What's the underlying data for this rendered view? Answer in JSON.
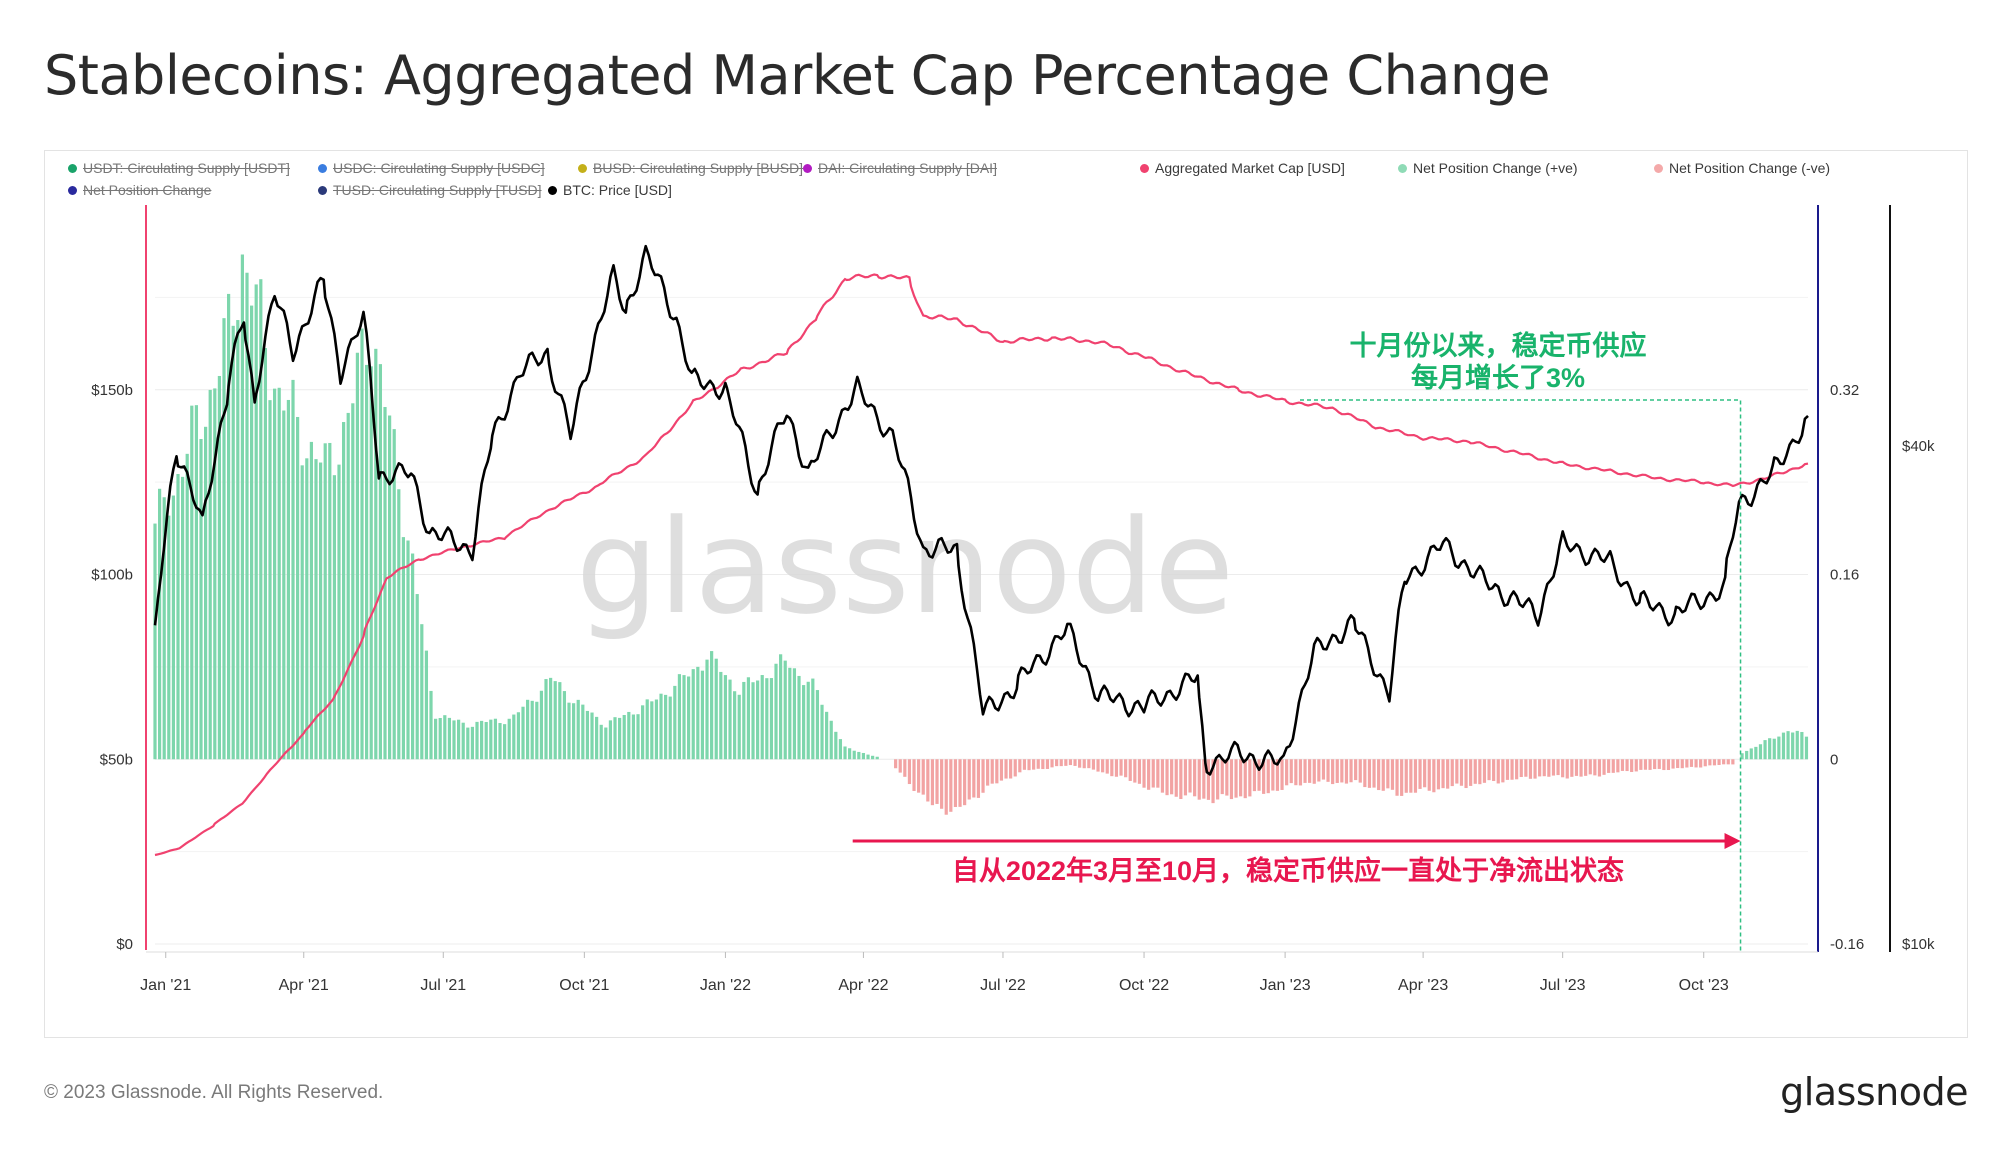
{
  "header": {
    "title": "Stablecoins: Aggregated Market Cap Percentage Change"
  },
  "footer": {
    "copyright": "© 2023 Glassnode. All Rights Reserved.",
    "brand": "glassnode"
  },
  "watermark": "glassnode",
  "colors": {
    "net_positive": "#7dd6ac",
    "net_negative": "#f2a3a3",
    "market_cap": "#f0426f",
    "btc_price": "#000000",
    "left_axis": "#f0426f",
    "right_axis": "#1a1a8c",
    "annotation_green": "#19b36b",
    "annotation_red": "#e8174f"
  },
  "legend": [
    {
      "label": "USDT: Circulating Supply [USDT]",
      "color": "#1aa36a",
      "active": false
    },
    {
      "label": "USDC: Circulating Supply [USDC]",
      "color": "#3a7de0",
      "active": false
    },
    {
      "label": "BUSD: Circulating Supply [BUSD]",
      "color": "#c4b01a",
      "active": false
    },
    {
      "label": "DAI: Circulating Supply [DAI]",
      "color": "#b21cc2",
      "active": false
    },
    {
      "label": "Aggregated Market Cap [USD]",
      "color": "#f0426f",
      "active": true
    },
    {
      "label": "Net Position Change (+ve)",
      "color": "#8fdbb6",
      "active": true
    },
    {
      "label": "Net Position Change (-ve)",
      "color": "#f4a9a9",
      "active": true
    },
    {
      "label": "Net Position Change",
      "color": "#2a2a9e",
      "active": false
    },
    {
      "label": "TUSD: Circulating Supply [TUSD]",
      "color": "#2b3a7a",
      "active": false
    },
    {
      "label": "BTC: Price [USD]",
      "color": "#000000",
      "active": true
    }
  ],
  "annotations": {
    "green_line1": "十月份以来，稳定币供应",
    "green_line2": "每月增长了3%",
    "red_text": "自从2022年3月至10月，稳定币供应一直处于净流出状态"
  },
  "chart_data": {
    "type": "line",
    "title": "Stablecoins: Aggregated Market Cap Percentage Change",
    "x_ticks": [
      "Jan '21",
      "Apr '21",
      "Jul '21",
      "Oct '21",
      "Jan '22",
      "Apr '22",
      "Jul '22",
      "Oct '22",
      "Jan '23",
      "Apr '23",
      "Jul '23",
      "Oct '23"
    ],
    "x_tick_dates": [
      "2021-01-01",
      "2021-04-01",
      "2021-07-01",
      "2021-10-01",
      "2022-01-01",
      "2022-04-01",
      "2022-07-01",
      "2022-10-01",
      "2023-01-01",
      "2023-04-01",
      "2023-07-01",
      "2023-10-01"
    ],
    "x_range": [
      "2020-12-25",
      "2023-12-08"
    ],
    "left_axis": {
      "ticks": [
        "$0",
        "$50b",
        "$100b",
        "$150b"
      ],
      "values": [
        0,
        50,
        100,
        150
      ],
      "range": [
        0,
        200
      ],
      "unit": "billion USD"
    },
    "right_axis": {
      "ticks": [
        "-0.16",
        "0",
        "0.16",
        "0.32"
      ],
      "values": [
        -0.16,
        0,
        0.16,
        0.32
      ],
      "range": [
        -0.16,
        0.48
      ]
    },
    "far_right_axis": {
      "ticks": [
        "$10k",
        "$40k"
      ],
      "values": [
        10000,
        40000
      ],
      "scale": "log"
    },
    "grid": true,
    "legend_position": "top",
    "series": [
      {
        "name": "Aggregated Market Cap [USD]",
        "axis": "left",
        "points": [
          [
            "2020-12-25",
            24
          ],
          [
            "2021-01-10",
            26
          ],
          [
            "2021-02-01",
            32
          ],
          [
            "2021-02-20",
            38
          ],
          [
            "2021-03-10",
            47
          ],
          [
            "2021-04-01",
            57
          ],
          [
            "2021-04-20",
            66
          ],
          [
            "2021-05-10",
            83
          ],
          [
            "2021-05-25",
            99
          ],
          [
            "2021-06-15",
            104
          ],
          [
            "2021-07-10",
            107
          ],
          [
            "2021-08-10",
            110
          ],
          [
            "2021-09-10",
            118
          ],
          [
            "2021-10-10",
            124
          ],
          [
            "2021-11-10",
            132
          ],
          [
            "2021-12-10",
            146
          ],
          [
            "2022-01-10",
            155
          ],
          [
            "2022-02-10",
            160
          ],
          [
            "2022-03-01",
            169
          ],
          [
            "2022-03-20",
            180
          ],
          [
            "2022-04-10",
            181
          ],
          [
            "2022-05-01",
            180
          ],
          [
            "2022-05-10",
            170
          ],
          [
            "2022-06-01",
            169
          ],
          [
            "2022-07-01",
            163
          ],
          [
            "2022-08-01",
            164
          ],
          [
            "2022-09-01",
            163
          ],
          [
            "2022-10-01",
            159
          ],
          [
            "2022-11-01",
            154
          ],
          [
            "2022-12-01",
            150
          ],
          [
            "2023-01-01",
            147
          ],
          [
            "2023-02-01",
            145
          ],
          [
            "2023-03-01",
            140
          ],
          [
            "2023-04-01",
            137
          ],
          [
            "2023-05-01",
            136
          ],
          [
            "2023-06-01",
            133
          ],
          [
            "2023-07-01",
            130
          ],
          [
            "2023-08-01",
            128
          ],
          [
            "2023-09-01",
            126
          ],
          [
            "2023-10-01",
            125
          ],
          [
            "2023-10-20",
            124
          ],
          [
            "2023-11-10",
            126
          ],
          [
            "2023-12-08",
            130
          ]
        ]
      },
      {
        "name": "BTC: Price [USD]",
        "axis": "far_right",
        "points": [
          [
            "2020-12-25",
            23500
          ],
          [
            "2021-01-08",
            40000
          ],
          [
            "2021-01-25",
            32000
          ],
          [
            "2021-02-10",
            46000
          ],
          [
            "2021-02-21",
            57000
          ],
          [
            "2021-02-28",
            45000
          ],
          [
            "2021-03-13",
            61000
          ],
          [
            "2021-03-25",
            52000
          ],
          [
            "2021-04-14",
            63500
          ],
          [
            "2021-04-25",
            49000
          ],
          [
            "2021-05-10",
            57000
          ],
          [
            "2021-05-20",
            37000
          ],
          [
            "2021-06-10",
            37000
          ],
          [
            "2021-06-22",
            31500
          ],
          [
            "2021-07-20",
            30000
          ],
          [
            "2021-08-01",
            40000
          ],
          [
            "2021-08-20",
            49000
          ],
          [
            "2021-09-07",
            52000
          ],
          [
            "2021-09-22",
            41000
          ],
          [
            "2021-10-20",
            64000
          ],
          [
            "2021-10-28",
            58000
          ],
          [
            "2021-11-10",
            68000
          ],
          [
            "2021-11-30",
            57000
          ],
          [
            "2021-12-10",
            48000
          ],
          [
            "2022-01-01",
            47000
          ],
          [
            "2022-01-22",
            35000
          ],
          [
            "2022-02-10",
            44000
          ],
          [
            "2022-02-24",
            37000
          ],
          [
            "2022-03-28",
            47000
          ],
          [
            "2022-04-20",
            41000
          ],
          [
            "2022-05-10",
            30000
          ],
          [
            "2022-06-01",
            30000
          ],
          [
            "2022-06-18",
            19000
          ],
          [
            "2022-07-10",
            20500
          ],
          [
            "2022-08-12",
            24000
          ],
          [
            "2022-09-01",
            20000
          ],
          [
            "2022-10-01",
            19300
          ],
          [
            "2022-11-05",
            21000
          ],
          [
            "2022-11-10",
            16500
          ],
          [
            "2022-12-01",
            17000
          ],
          [
            "2022-12-31",
            16500
          ],
          [
            "2023-01-20",
            22500
          ],
          [
            "2023-02-15",
            24500
          ],
          [
            "2023-03-10",
            20000
          ],
          [
            "2023-03-20",
            27500
          ],
          [
            "2023-04-14",
            30400
          ],
          [
            "2023-05-10",
            27500
          ],
          [
            "2023-06-15",
            25000
          ],
          [
            "2023-07-01",
            30500
          ],
          [
            "2023-08-01",
            29000
          ],
          [
            "2023-08-20",
            26000
          ],
          [
            "2023-09-12",
            25000
          ],
          [
            "2023-10-15",
            27000
          ],
          [
            "2023-10-24",
            34000
          ],
          [
            "2023-11-15",
            37000
          ],
          [
            "2023-12-04",
            42000
          ],
          [
            "2023-12-08",
            43500
          ]
        ]
      },
      {
        "name": "Net Position Change (+ve)",
        "axis": "right",
        "type": "bar",
        "points": [
          [
            "2020-12-25",
            0.2
          ],
          [
            "2021-01-10",
            0.25
          ],
          [
            "2021-01-25",
            0.3
          ],
          [
            "2021-02-10",
            0.36
          ],
          [
            "2021-02-20",
            0.44
          ],
          [
            "2021-03-01",
            0.39
          ],
          [
            "2021-03-15",
            0.32
          ],
          [
            "2021-04-01",
            0.28
          ],
          [
            "2021-04-15",
            0.25
          ],
          [
            "2021-05-01",
            0.3
          ],
          [
            "2021-05-15",
            0.38
          ],
          [
            "2021-05-25",
            0.3
          ],
          [
            "2021-06-10",
            0.18
          ],
          [
            "2021-06-25",
            0.04
          ],
          [
            "2021-07-15",
            0.03
          ],
          [
            "2021-08-15",
            0.035
          ],
          [
            "2021-09-10",
            0.07
          ],
          [
            "2021-09-25",
            0.05
          ],
          [
            "2021-10-15",
            0.03
          ],
          [
            "2021-11-15",
            0.05
          ],
          [
            "2021-12-10",
            0.075
          ],
          [
            "2021-12-20",
            0.09
          ],
          [
            "2022-01-10",
            0.06
          ],
          [
            "2022-02-10",
            0.085
          ],
          [
            "2022-03-01",
            0.06
          ],
          [
            "2022-03-20",
            0.01
          ],
          [
            "2022-04-10",
            0.002
          ]
        ]
      },
      {
        "name": "Net Position Change (-ve)",
        "axis": "right",
        "type": "bar",
        "points": [
          [
            "2022-04-20",
            -0.005
          ],
          [
            "2022-05-15",
            -0.04
          ],
          [
            "2022-06-01",
            -0.045
          ],
          [
            "2022-06-20",
            -0.025
          ],
          [
            "2022-07-15",
            -0.01
          ],
          [
            "2022-08-15",
            -0.005
          ],
          [
            "2022-09-15",
            -0.015
          ],
          [
            "2022-10-15",
            -0.03
          ],
          [
            "2022-11-15",
            -0.035
          ],
          [
            "2022-12-15",
            -0.03
          ],
          [
            "2023-01-15",
            -0.02
          ],
          [
            "2023-02-15",
            -0.02
          ],
          [
            "2023-03-15",
            -0.03
          ],
          [
            "2023-04-15",
            -0.025
          ],
          [
            "2023-05-15",
            -0.02
          ],
          [
            "2023-06-15",
            -0.015
          ],
          [
            "2023-07-15",
            -0.015
          ],
          [
            "2023-08-15",
            -0.01
          ],
          [
            "2023-09-15",
            -0.008
          ],
          [
            "2023-10-20",
            -0.004
          ]
        ]
      },
      {
        "name": "Net Position Change (+ve)",
        "axis": "right",
        "type": "bar",
        "points": [
          [
            "2023-10-25",
            0.005
          ],
          [
            "2023-11-10",
            0.015
          ],
          [
            "2023-11-25",
            0.025
          ],
          [
            "2023-12-08",
            0.02
          ]
        ]
      }
    ]
  }
}
